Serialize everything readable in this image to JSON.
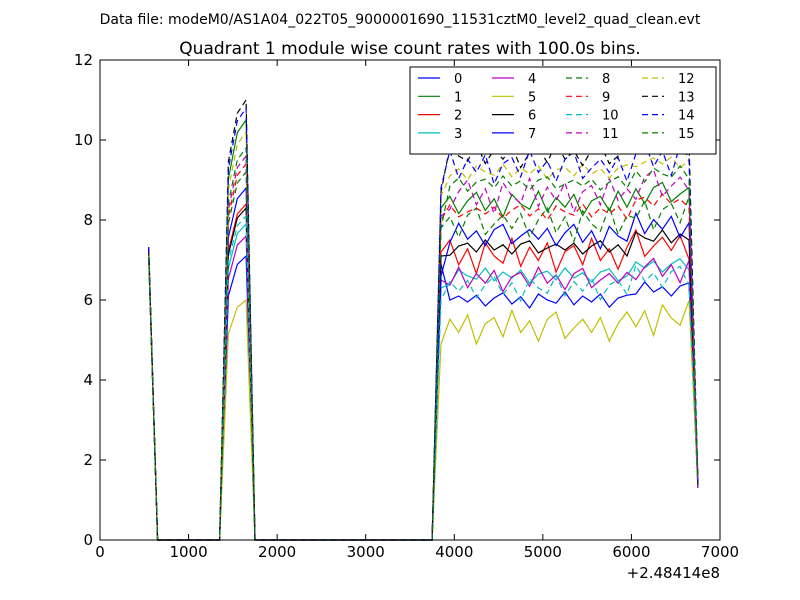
{
  "figure": {
    "suptitle": "Data file: modeM0/AS1A04_022T05_9000001690_11531cztM0_level2_quad_clean.evt",
    "title": "Quadrant 1 module wise count rates with 100.0s bins.",
    "x_offset_label": "+2.48414e8"
  },
  "chart_data": {
    "type": "line",
    "title": "Quadrant 1 module wise count rates with 100.0s bins.",
    "xlabel": "",
    "ylabel": "",
    "xlim": [
      0,
      7000
    ],
    "ylim": [
      0,
      12
    ],
    "x_offset": 248414000,
    "x_ticks": [
      0,
      1000,
      2000,
      3000,
      4000,
      5000,
      6000,
      7000
    ],
    "y_ticks": [
      0,
      2,
      4,
      6,
      8,
      10,
      12
    ],
    "grid": false,
    "legend": {
      "placement": "top-right",
      "columns": 4
    },
    "x": [
      550,
      650,
      750,
      850,
      950,
      1050,
      1150,
      1250,
      1350,
      1450,
      1550,
      1650,
      1750,
      1850,
      1950,
      2050,
      2150,
      2250,
      2350,
      2450,
      2550,
      2650,
      2750,
      2850,
      2950,
      3050,
      3150,
      3250,
      3350,
      3450,
      3550,
      3650,
      3750,
      3850,
      3950,
      4050,
      4150,
      4250,
      4350,
      4450,
      4550,
      4650,
      4750,
      4850,
      4950,
      5050,
      5150,
      5250,
      5350,
      5450,
      5550,
      5650,
      5750,
      5850,
      5950,
      6050,
      6150,
      6250,
      6350,
      6450,
      6550,
      6650,
      6750
    ],
    "series": [
      {
        "name": "0",
        "color": "#0000ff",
        "dash": "solid",
        "peak": 7.1,
        "plateau": 6.0
      },
      {
        "name": "1",
        "color": "#008000",
        "dash": "solid",
        "peak": 10.5,
        "plateau": 8.4
      },
      {
        "name": "2",
        "color": "#ff0000",
        "dash": "solid",
        "peak": 8.4,
        "plateau": 7.1
      },
      {
        "name": "3",
        "color": "#00bfbf",
        "dash": "solid",
        "peak": 7.9,
        "plateau": 6.6
      },
      {
        "name": "4",
        "color": "#bf00bf",
        "dash": "solid",
        "peak": 7.6,
        "plateau": 6.5
      },
      {
        "name": "5",
        "color": "#bfbf00",
        "dash": "solid",
        "peak": 6.0,
        "plateau": 5.3
      },
      {
        "name": "6",
        "color": "#000000",
        "dash": "solid",
        "peak": 8.3,
        "plateau": 7.3
      },
      {
        "name": "7",
        "color": "#0000ff",
        "dash": "solid",
        "peak": 8.8,
        "plateau": 7.6
      },
      {
        "name": "8",
        "color": "#008000",
        "dash": "dashed",
        "peak": 9.2,
        "plateau": 7.9
      },
      {
        "name": "9",
        "color": "#ff0000",
        "dash": "dashed",
        "peak": 9.4,
        "plateau": 8.2
      },
      {
        "name": "10",
        "color": "#00bfbf",
        "dash": "dashed",
        "peak": 8.1,
        "plateau": 6.3
      },
      {
        "name": "11",
        "color": "#bf00bf",
        "dash": "dashed",
        "peak": 9.6,
        "plateau": 8.6
      },
      {
        "name": "12",
        "color": "#bfbf00",
        "dash": "dashed",
        "peak": 10.2,
        "plateau": 9.2
      },
      {
        "name": "13",
        "color": "#000000",
        "dash": "dashed",
        "peak": 11.0,
        "plateau": 9.6
      },
      {
        "name": "14",
        "color": "#0000ff",
        "dash": "dashed",
        "peak": 10.8,
        "plateau": 9.3
      },
      {
        "name": "15",
        "color": "#008000",
        "dash": "dashed",
        "peak": 9.8,
        "plateau": 8.9
      }
    ],
    "noise": [
      0.0,
      0.1,
      -0.05,
      0.12,
      -0.15,
      0.05,
      0.18,
      -0.1,
      0.08,
      -0.2,
      0.15,
      0.0,
      -0.08,
      0.2,
      -0.12,
      0.1,
      -0.05,
      0.15,
      -0.18,
      0.05,
      0.12,
      -0.1,
      0.2,
      -0.05,
      0.08,
      -0.15,
      0.1,
      0.18,
      -0.12
    ],
    "plateau_start_values": [
      6.9,
      8.3,
      7.2,
      6.3,
      6.5,
      4.9,
      7.1,
      6.6,
      7.8,
      8.0,
      6.0,
      8.1,
      8.6,
      8.7,
      8.8,
      7.8
    ],
    "end_value": 1.3
  }
}
